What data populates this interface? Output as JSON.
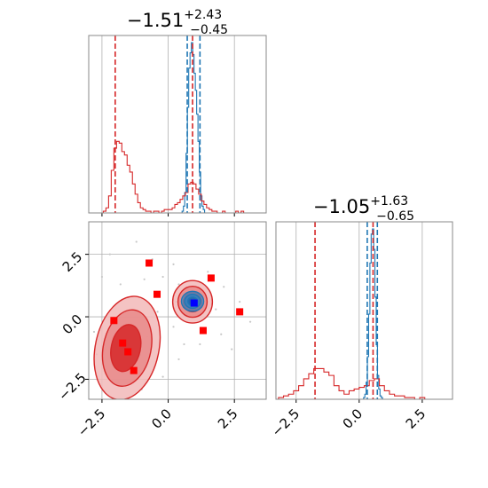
{
  "colors": {
    "red": "#d62728",
    "blue": "#1f77b4",
    "grid": "#b0b0b0",
    "frame": "#888888",
    "marker_red": "#ff0000",
    "marker_blue": "#0000ff"
  },
  "chart_data": [
    {
      "panel": "marginal-x",
      "type": "line",
      "title": {
        "base": "−1.51",
        "sup": "+2.43",
        "sub": "−0.45"
      },
      "xlim": [
        -3.0,
        3.7
      ],
      "grid": true,
      "series": [
        {
          "color": "#1f77b4",
          "x": [
            0.55,
            0.6,
            0.65,
            0.7,
            0.75,
            0.8,
            0.85,
            0.9,
            0.95,
            1.0,
            1.05,
            1.1,
            1.15,
            1.2,
            1.25,
            1.3,
            1.35,
            1.4
          ],
          "y": [
            0.01,
            0.04,
            0.12,
            0.35,
            0.62,
            0.85,
            0.94,
            1.0,
            0.93,
            0.82,
            0.72,
            0.58,
            0.42,
            0.24,
            0.1,
            0.04,
            0.02,
            0.0
          ]
        },
        {
          "color": "#d62728",
          "x": [
            -2.4,
            -2.3,
            -2.2,
            -2.1,
            -2.0,
            -1.9,
            -1.8,
            -1.7,
            -1.6,
            -1.5,
            -1.4,
            -1.3,
            -1.2,
            -1.1,
            -1.0,
            -0.9,
            -0.8,
            -0.7,
            -0.6,
            -0.5,
            -0.4,
            -0.3,
            -0.2,
            -0.1,
            0.0,
            0.1,
            0.2,
            0.3,
            0.4,
            0.5,
            0.6,
            0.7,
            0.8,
            0.9,
            1.0,
            1.1,
            1.2,
            1.3,
            1.4,
            1.5,
            1.6,
            1.7,
            1.8,
            1.9,
            2.0,
            2.1,
            2.2,
            2.3,
            2.4,
            2.5,
            2.6,
            2.7,
            2.8,
            2.9,
            3.0
          ],
          "y": [
            0.01,
            0.03,
            0.1,
            0.25,
            0.38,
            0.42,
            0.41,
            0.36,
            0.34,
            0.28,
            0.24,
            0.17,
            0.11,
            0.06,
            0.03,
            0.02,
            0.01,
            0.01,
            0.0,
            0.01,
            0.01,
            0.0,
            0.01,
            0.02,
            0.02,
            0.02,
            0.03,
            0.05,
            0.06,
            0.08,
            0.1,
            0.12,
            0.17,
            0.18,
            0.17,
            0.14,
            0.11,
            0.07,
            0.05,
            0.03,
            0.02,
            0.01,
            0.01,
            0.0,
            0.0,
            0.01,
            0.0,
            0.0,
            0.0,
            0.0,
            0.01,
            0.0,
            0.01,
            0.0,
            0.0
          ]
        }
      ],
      "vlines": [
        {
          "x": -2.0,
          "color": "#d62728"
        },
        {
          "x": 0.72,
          "color": "#1f77b4"
        },
        {
          "x": 0.92,
          "color": "#d62728"
        },
        {
          "x": 1.2,
          "color": "#1f77b4"
        }
      ]
    },
    {
      "panel": "marginal-y",
      "type": "line",
      "title": {
        "base": "−1.05",
        "sup": "+1.63",
        "sub": "−0.65"
      },
      "xlim": [
        -3.3,
        3.7
      ],
      "xticks": [
        -2.5,
        0.0,
        2.5
      ],
      "xtick_labels": [
        "−2.5",
        "0.0",
        "2.5"
      ],
      "grid": true,
      "series": [
        {
          "color": "#1f77b4",
          "x": [
            0.2,
            0.25,
            0.3,
            0.35,
            0.4,
            0.45,
            0.5,
            0.55,
            0.6,
            0.65,
            0.7,
            0.75,
            0.8,
            0.85,
            0.9,
            0.95
          ],
          "y": [
            0.01,
            0.03,
            0.1,
            0.25,
            0.5,
            0.8,
            0.97,
            1.0,
            0.88,
            0.6,
            0.32,
            0.14,
            0.06,
            0.02,
            0.01,
            0.0
          ]
        },
        {
          "color": "#d62728",
          "x": [
            -3.1,
            -2.9,
            -2.7,
            -2.5,
            -2.3,
            -2.1,
            -1.9,
            -1.7,
            -1.5,
            -1.3,
            -1.1,
            -0.9,
            -0.7,
            -0.5,
            -0.3,
            -0.1,
            0.1,
            0.3,
            0.5,
            0.7,
            0.9,
            1.1,
            1.3,
            1.5,
            1.7,
            1.9,
            2.1,
            2.3,
            2.5,
            2.7,
            2.9
          ],
          "y": [
            0.01,
            0.02,
            0.03,
            0.05,
            0.08,
            0.12,
            0.15,
            0.18,
            0.18,
            0.16,
            0.14,
            0.08,
            0.05,
            0.03,
            0.05,
            0.06,
            0.07,
            0.08,
            0.11,
            0.12,
            0.08,
            0.05,
            0.03,
            0.02,
            0.02,
            0.01,
            0.01,
            0.0,
            0.01,
            0.0,
            0.0
          ]
        }
      ],
      "vlines": [
        {
          "x": -1.75,
          "color": "#d62728"
        },
        {
          "x": 0.32,
          "color": "#1f77b4"
        },
        {
          "x": 0.55,
          "color": "#d62728"
        },
        {
          "x": 0.72,
          "color": "#1f77b4"
        }
      ]
    },
    {
      "panel": "joint",
      "type": "scatter",
      "xlim": [
        -3.0,
        3.7
      ],
      "ylim": [
        -3.3,
        3.8
      ],
      "xticks": [
        -2.5,
        0.0,
        2.5
      ],
      "xtick_labels": [
        "−2.5",
        "0.0",
        "2.5"
      ],
      "yticks": [
        -2.5,
        0.0,
        2.5
      ],
      "ytick_labels": [
        "−2.5",
        "0.0",
        "2.5"
      ],
      "grid": true,
      "red_contours": [
        {
          "cx": -1.55,
          "cy": -1.25,
          "rx": 1.2,
          "ry": 2.1,
          "rot": 12,
          "fill": "#f2b8b8"
        },
        {
          "cx": -1.55,
          "cy": -1.25,
          "rx": 0.9,
          "ry": 1.55,
          "rot": 12,
          "fill": "#e88a8a"
        },
        {
          "cx": -1.6,
          "cy": -1.25,
          "rx": 0.55,
          "ry": 0.95,
          "rot": 12,
          "fill": "#d62728"
        },
        {
          "cx": 0.92,
          "cy": 0.6,
          "rx": 0.75,
          "ry": 0.85,
          "rot": 0,
          "fill": "#f2b8b8"
        },
        {
          "cx": 0.92,
          "cy": 0.6,
          "rx": 0.55,
          "ry": 0.62,
          "rot": 0,
          "fill": "#e88a8a"
        },
        {
          "cx": 0.92,
          "cy": 0.6,
          "rx": 0.35,
          "ry": 0.4,
          "rot": 0,
          "fill": "#d62728"
        }
      ],
      "blue_contours": [
        {
          "cx": 0.92,
          "cy": 0.62,
          "rx": 0.42,
          "ry": 0.4,
          "rot": 0
        },
        {
          "cx": 0.92,
          "cy": 0.62,
          "rx": 0.3,
          "ry": 0.28,
          "rot": 0
        },
        {
          "cx": 0.92,
          "cy": 0.62,
          "rx": 0.18,
          "ry": 0.17,
          "rot": 0
        }
      ],
      "red_markers": [
        {
          "x": -0.72,
          "y": 2.15
        },
        {
          "x": -0.42,
          "y": 0.9
        },
        {
          "x": 1.62,
          "y": 1.55
        },
        {
          "x": 2.7,
          "y": 0.2
        },
        {
          "x": 1.32,
          "y": -0.55
        },
        {
          "x": -2.05,
          "y": -0.15
        },
        {
          "x": -1.72,
          "y": -1.05
        },
        {
          "x": -1.52,
          "y": -1.4
        },
        {
          "x": -1.3,
          "y": -2.15
        }
      ],
      "blue_marker": {
        "x": 0.98,
        "y": 0.55
      },
      "scatter_points": [
        [
          -1.2,
          3.0
        ],
        [
          -0.6,
          2.3
        ],
        [
          0.2,
          2.1
        ],
        [
          -2.5,
          1.6
        ],
        [
          -1.8,
          1.3
        ],
        [
          -0.9,
          1.5
        ],
        [
          -0.2,
          1.6
        ],
        [
          0.4,
          1.3
        ],
        [
          2.1,
          1.2
        ],
        [
          2.7,
          0.6
        ],
        [
          3.1,
          -0.2
        ],
        [
          -0.4,
          0.2
        ],
        [
          0.2,
          -0.4
        ],
        [
          0.6,
          -1.1
        ],
        [
          -0.8,
          -0.8
        ],
        [
          -2.7,
          -1.5
        ],
        [
          -2.8,
          -0.6
        ],
        [
          0.4,
          -1.7
        ],
        [
          1.8,
          0.3
        ],
        [
          1.5,
          1.8
        ],
        [
          0.3,
          0.6
        ],
        [
          2.4,
          -1.3
        ],
        [
          -2.2,
          2.5
        ],
        [
          1.2,
          -1.1
        ],
        [
          -1.0,
          -2.9
        ],
        [
          -0.2,
          -2.4
        ],
        [
          2.0,
          -0.7
        ]
      ]
    }
  ]
}
